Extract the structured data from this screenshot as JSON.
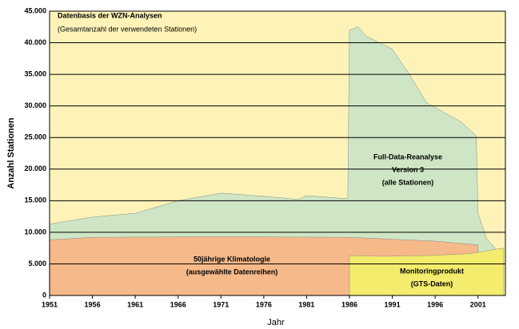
{
  "chart_data": {
    "type": "area",
    "title": "Datenbasis der WZN-Analysen",
    "subtitle": "(Gesamtanzahl der verwendeten Stationen)",
    "x_label": "Jahr",
    "y_label": "Anzahl Stationen",
    "xlim": [
      1951,
      2004.2
    ],
    "ylim": [
      0,
      45000
    ],
    "xticks": [
      1951,
      1956,
      1961,
      1966,
      1971,
      1976,
      1981,
      1986,
      1991,
      1996,
      2001
    ],
    "yticks": [
      0,
      {
        "value": 5000,
        "label": "5.000"
      },
      {
        "value": 10000,
        "label": "10.000"
      },
      {
        "value": 15000,
        "label": "15.000"
      },
      {
        "value": 20000,
        "label": "20.000"
      },
      {
        "value": 25000,
        "label": "25.000"
      },
      {
        "value": 30000,
        "label": "30.000"
      },
      {
        "value": 35000,
        "label": "35.000"
      },
      {
        "value": 40000,
        "label": "40.000"
      },
      {
        "value": 45000,
        "label": "45.000"
      }
    ],
    "grid": true,
    "series": [
      {
        "label": [
          "Full-Data-Reanalyse",
          "Version 3",
          "(alle Stationen)"
        ],
        "color": "#cfe6c6",
        "x": [
          1951,
          1956,
          1961,
          1966,
          1971,
          1976,
          1980,
          1981,
          1985.8,
          1986,
          1987,
          1988,
          1991,
          1993,
          1995,
          1997,
          1999,
          2000.8,
          2001,
          2002,
          2003
        ],
        "values": [
          11300,
          12400,
          13000,
          15000,
          16200,
          15700,
          15200,
          15800,
          15300,
          42000,
          42500,
          41000,
          39000,
          35000,
          30500,
          29000,
          27500,
          25300,
          13000,
          9000,
          7500
        ]
      },
      {
        "label": [
          "50jährige Klimatologie",
          "(ausgewählte Datenreihen)"
        ],
        "color": "#f6b98a",
        "x": [
          1951,
          1956,
          1971,
          1986,
          1996,
          2001
        ],
        "values": [
          8800,
          9200,
          9300,
          9200,
          8600,
          8000
        ]
      },
      {
        "label": [
          "Monitoringprodukt",
          "(GTS-Daten)"
        ],
        "color": "#f4ec6c",
        "x": [
          1986,
          1990,
          1995,
          2000,
          2003,
          2004
        ],
        "values": [
          6300,
          6200,
          6300,
          6600,
          7300,
          7500
        ]
      }
    ]
  }
}
